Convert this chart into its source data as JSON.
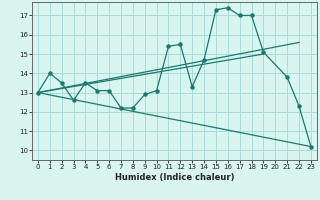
{
  "title": "",
  "xlabel": "Humidex (Indice chaleur)",
  "bg_color": "#d8f5f0",
  "line_color": "#1a7a6e",
  "xlim": [
    -0.5,
    23.5
  ],
  "ylim": [
    9.5,
    17.7
  ],
  "xticks": [
    0,
    1,
    2,
    3,
    4,
    5,
    6,
    7,
    8,
    9,
    10,
    11,
    12,
    13,
    14,
    15,
    16,
    17,
    18,
    19,
    20,
    21,
    22,
    23
  ],
  "yticks": [
    10,
    11,
    12,
    13,
    14,
    15,
    16,
    17
  ],
  "grid_color": "#aaddd8",
  "main_x": [
    0,
    1,
    2,
    3,
    4,
    5,
    6,
    7,
    8,
    9,
    10,
    11,
    12,
    13,
    14,
    15,
    16,
    17,
    18,
    19,
    21,
    22,
    23
  ],
  "main_y": [
    13.0,
    14.0,
    13.5,
    12.6,
    13.5,
    13.1,
    13.1,
    12.2,
    12.2,
    12.9,
    13.1,
    15.4,
    15.5,
    13.3,
    14.7,
    17.3,
    17.4,
    17.0,
    17.0,
    15.1,
    13.8,
    12.3,
    10.2
  ],
  "line1_x": [
    0,
    22
  ],
  "line1_y": [
    13.0,
    15.6
  ],
  "line2_x": [
    0,
    23
  ],
  "line2_y": [
    13.0,
    10.2
  ],
  "line3_x": [
    0,
    19
  ],
  "line3_y": [
    13.0,
    15.0
  ],
  "xlabel_fontsize": 6,
  "tick_fontsize": 5
}
